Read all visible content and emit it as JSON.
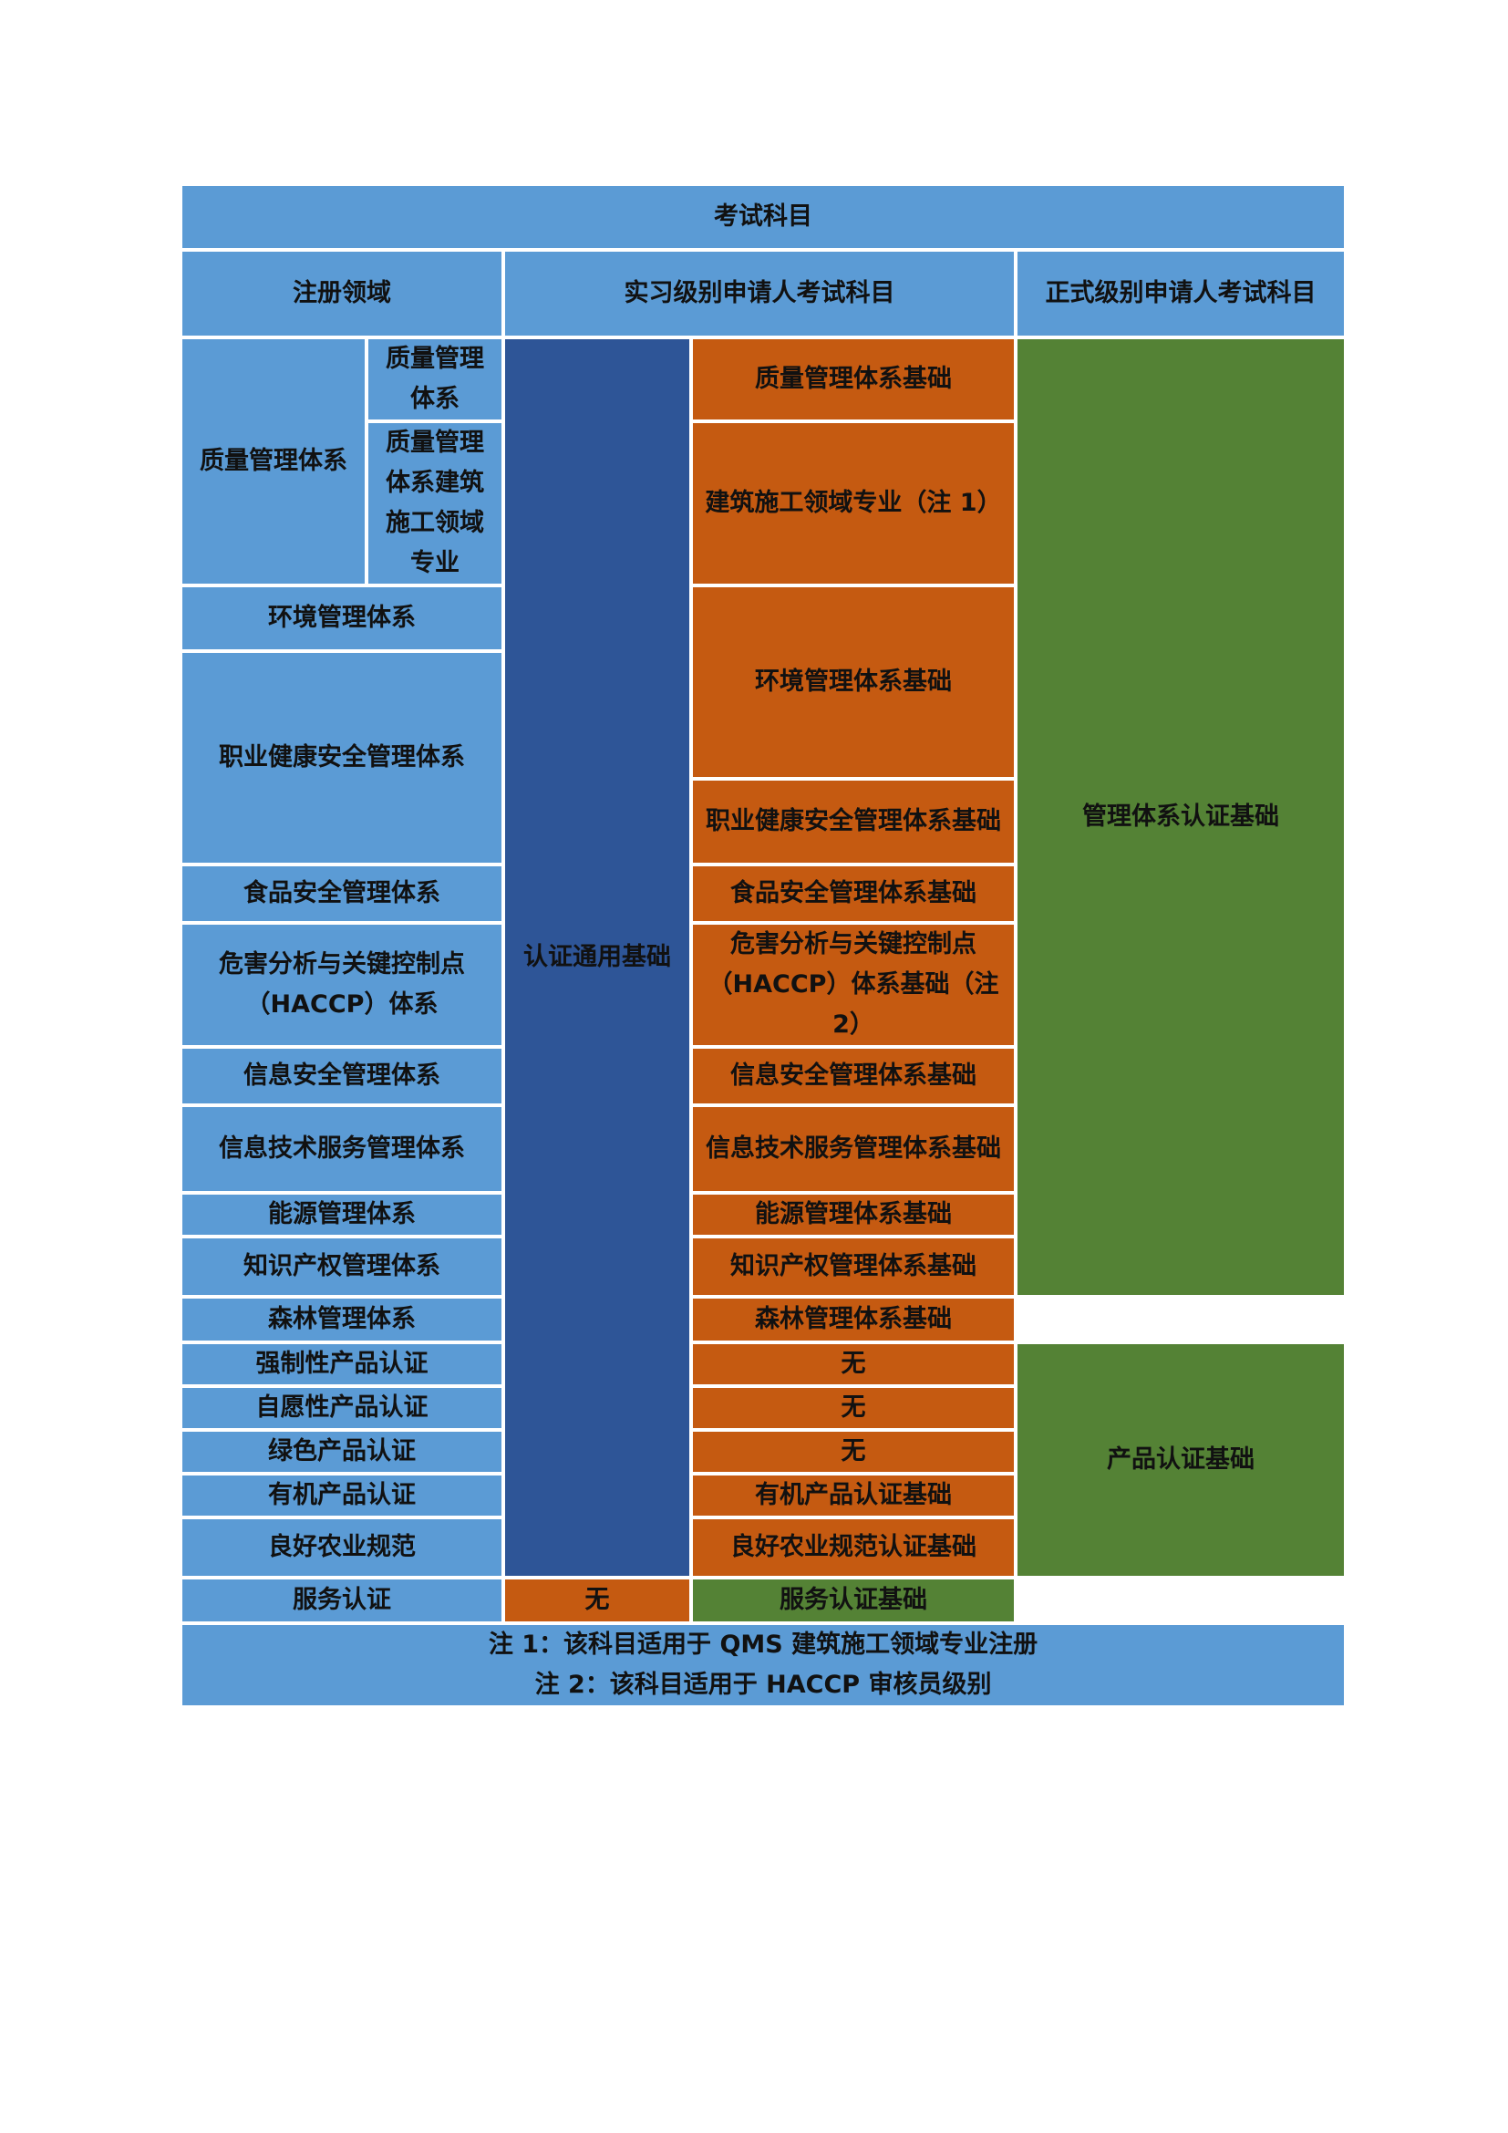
{
  "table": {
    "title": "考试科目",
    "headers": {
      "field": "注册领域",
      "intern": "实习级别申请人考试科目",
      "formal": "正式级别申请人考试科目"
    },
    "qms_group": "质量管理体系",
    "rows": [
      {
        "field": "质量管理体系",
        "intern_subject": "质量管理体系基础"
      },
      {
        "field": "质量管理体系建筑施工领域专业",
        "intern_subject": "建筑施工领域专业（注 1）"
      },
      {
        "field": "环境管理体系",
        "intern_subject": "环境管理体系基础"
      },
      {
        "field": "职业健康安全管理体系",
        "intern_subject": "职业健康安全管理体系基础"
      },
      {
        "field": "食品安全管理体系",
        "intern_subject": "食品安全管理体系基础"
      },
      {
        "field": "危害分析与关键控制点（HACCP）体系",
        "intern_subject": "危害分析与关键控制点（HACCP）体系基础（注 2）"
      },
      {
        "field": "信息安全管理体系",
        "intern_subject": "信息安全管理体系基础"
      },
      {
        "field": "信息技术服务管理体系",
        "intern_subject": "信息技术服务管理体系基础"
      },
      {
        "field": "能源管理体系",
        "intern_subject": "能源管理体系基础"
      },
      {
        "field": "知识产权管理体系",
        "intern_subject": "知识产权管理体系基础"
      },
      {
        "field": "森林管理体系",
        "intern_subject": "森林管理体系基础"
      },
      {
        "field": "强制性产品认证",
        "intern_subject": "无"
      },
      {
        "field": "自愿性产品认证",
        "intern_subject": "无"
      },
      {
        "field": "绿色产品认证",
        "intern_subject": "无"
      },
      {
        "field": "有机产品认证",
        "intern_subject": "有机产品认证基础"
      },
      {
        "field": "良好农业规范",
        "intern_subject": "良好农业规范认证基础"
      },
      {
        "field": "服务认证",
        "intern_subject": "无"
      }
    ],
    "intern_common": "认证通用基础",
    "formal_subjects": {
      "management": "管理体系认证基础",
      "product": "产品认证基础",
      "service": "服务认证基础"
    },
    "notes": [
      "注 1：该科目适用于 QMS 建筑施工领域专业注册",
      "注 2：该科目适用于 HACCP 审核员级别"
    ]
  },
  "colors": {
    "light_blue": "#5b9bd5",
    "dark_blue": "#2e5597",
    "orange": "#c55a11",
    "green": "#548235"
  }
}
